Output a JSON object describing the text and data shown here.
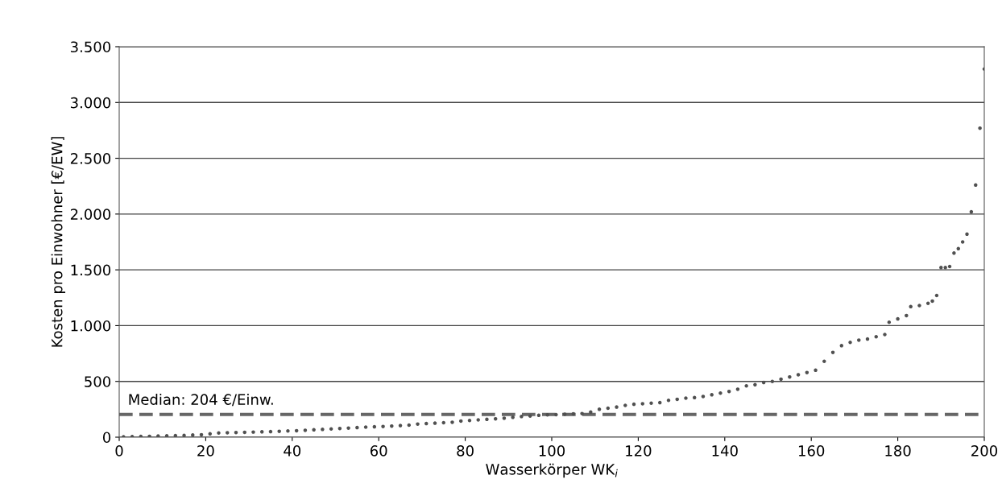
{
  "chart_data": {
    "type": "scatter",
    "xlabel": "Wasserkörper WK$_{i}$",
    "ylabel": "Kosten pro Einwohner [€/EW]",
    "x": [
      1,
      3,
      5,
      7,
      9,
      11,
      13,
      15,
      17,
      19,
      21,
      23,
      25,
      27,
      29,
      31,
      33,
      35,
      37,
      39,
      41,
      43,
      45,
      47,
      49,
      51,
      53,
      55,
      57,
      59,
      61,
      63,
      65,
      67,
      69,
      71,
      73,
      75,
      77,
      79,
      81,
      83,
      85,
      87,
      89,
      91,
      93,
      95,
      97,
      99,
      101,
      103,
      105,
      107,
      109,
      111,
      113,
      115,
      117,
      119,
      121,
      123,
      125,
      127,
      129,
      131,
      133,
      135,
      137,
      139,
      141,
      143,
      145,
      147,
      149,
      151,
      153,
      155,
      157,
      159,
      161,
      163,
      165,
      167,
      169,
      171,
      173,
      175,
      177,
      178,
      180,
      182,
      183,
      185,
      187,
      188,
      189,
      190,
      191,
      192,
      193,
      194,
      195,
      196,
      197,
      198,
      199,
      200
    ],
    "series": [
      {
        "color": "#505050",
        "values": [
          3,
          5,
          7,
          8,
          10,
          12,
          14,
          16,
          19,
          22,
          30,
          38,
          40,
          42,
          44,
          46,
          48,
          50,
          53,
          56,
          58,
          62,
          66,
          70,
          74,
          78,
          82,
          86,
          90,
          93,
          96,
          100,
          104,
          108,
          118,
          122,
          126,
          130,
          134,
          145,
          150,
          155,
          160,
          165,
          170,
          178,
          185,
          190,
          196,
          200,
          202,
          206,
          210,
          212,
          225,
          250,
          260,
          270,
          285,
          295,
          300,
          305,
          310,
          330,
          340,
          350,
          355,
          365,
          380,
          395,
          410,
          430,
          460,
          470,
          490,
          500,
          520,
          540,
          560,
          580,
          600,
          680,
          760,
          820,
          850,
          870,
          880,
          900,
          920,
          1030,
          1060,
          1090,
          1170,
          1180,
          1200,
          1220,
          1270,
          1520,
          1520,
          1530,
          1650,
          1690,
          1750,
          1820,
          2020,
          2260,
          2770,
          3300
        ]
      }
    ],
    "xlim": [
      0,
      200
    ],
    "xticks": [
      0,
      20,
      40,
      60,
      80,
      100,
      120,
      140,
      160,
      180,
      200
    ],
    "ylim": [
      0,
      3500
    ],
    "yticks": [
      0,
      500,
      {
        "value": 1000,
        "label": "1.000"
      },
      {
        "value": 1500,
        "label": "1.500"
      },
      {
        "value": 2000,
        "label": "2.000"
      },
      {
        "value": 2500,
        "label": "2.500"
      },
      {
        "value": 3000,
        "label": "3.000"
      },
      {
        "value": 3500,
        "label": "3.500"
      }
    ],
    "grid": "y",
    "marker": "circle",
    "ref_lines": [
      {
        "axis": "y",
        "value": 204,
        "label": "Median: 204 €/Einw.",
        "color": "#666666",
        "line_style": "dashed"
      }
    ]
  }
}
